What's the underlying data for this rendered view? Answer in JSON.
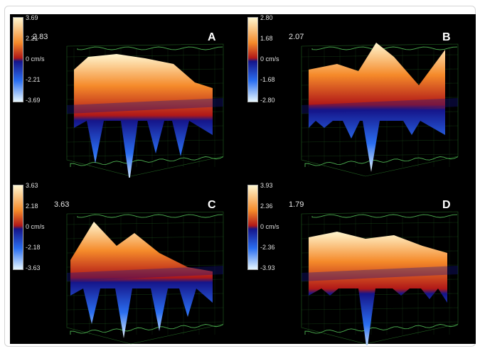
{
  "chart_data": [
    {
      "type": "surface",
      "label": "A",
      "unit": "cm/s",
      "colorbar_ticks": [
        "3.69",
        "2.21",
        "0 cm/s",
        "-2.21",
        "-3.69"
      ],
      "peak_label": "2.83",
      "zlim": [
        -3.69,
        3.69
      ]
    },
    {
      "type": "surface",
      "label": "B",
      "unit": "cm/s",
      "colorbar_ticks": [
        "2.80",
        "1.68",
        "0 cm/s",
        "-1.68",
        "-2.80"
      ],
      "peak_label": "2.07",
      "zlim": [
        -2.8,
        2.8
      ]
    },
    {
      "type": "surface",
      "label": "C",
      "unit": "cm/s",
      "colorbar_ticks": [
        "3.63",
        "2.18",
        "0 cm/s",
        "-2.18",
        "-3.63"
      ],
      "peak_label": "3.63",
      "zlim": [
        -3.63,
        3.63
      ]
    },
    {
      "type": "surface",
      "label": "D",
      "unit": "cm/s",
      "colorbar_ticks": [
        "3.93",
        "2.36",
        "0 cm/s",
        "-2.36",
        "-3.93"
      ],
      "peak_label": "1.79",
      "zlim": [
        -3.93,
        3.93
      ]
    }
  ],
  "colors": {
    "positive_high": "#fff6d0",
    "positive_mid": "#f58a2a",
    "positive_low": "#b01818",
    "negative_low": "#15158a",
    "negative_mid": "#2a6ef0",
    "negative_high": "#e6f6ff",
    "grid": "#2f8a2f",
    "background": "#000000"
  }
}
